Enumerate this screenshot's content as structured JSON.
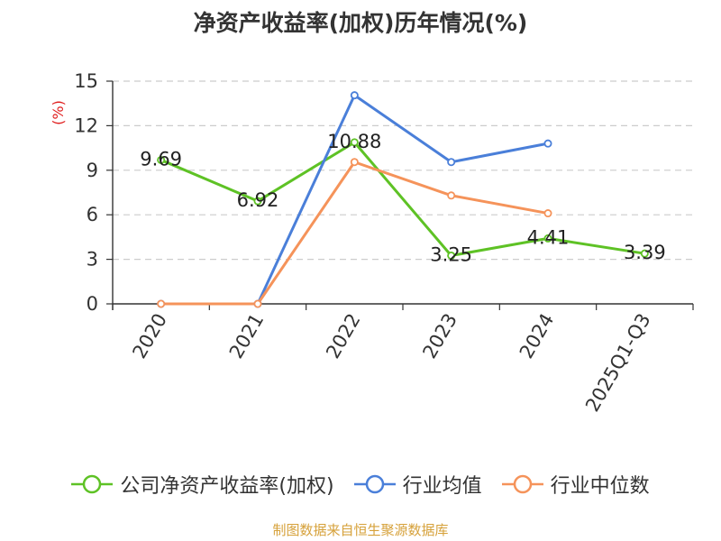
{
  "title": "净资产收益率(加权)历年情况(%)",
  "footer": "制图数据来自恒生聚源数据库",
  "chart_data": {
    "type": "line",
    "title": "净资产收益率(加权)历年情况(%)",
    "ylabel": "(%)",
    "xlabel": "",
    "categories": [
      "2020",
      "2021",
      "2022",
      "2023",
      "2024",
      "2025Q1-Q3"
    ],
    "ylim": [
      0,
      15
    ],
    "yticks": [
      0,
      3,
      6,
      9,
      12,
      15
    ],
    "grid": true,
    "legend_position": "bottom",
    "series": [
      {
        "name": "公司净资产收益率(加权)",
        "color": "#5ec225",
        "values": [
          9.69,
          6.92,
          10.88,
          3.25,
          4.41,
          3.39
        ],
        "labels": [
          "9.69",
          "6.92",
          "10.88",
          "3.25",
          "4.41",
          "3.39"
        ]
      },
      {
        "name": "行业均值",
        "color": "#4a7fd9",
        "values": [
          0,
          0,
          14.05,
          9.55,
          10.8,
          null
        ]
      },
      {
        "name": "行业中位数",
        "color": "#f5935a",
        "values": [
          0,
          0,
          9.55,
          7.3,
          6.1,
          null
        ]
      }
    ]
  }
}
